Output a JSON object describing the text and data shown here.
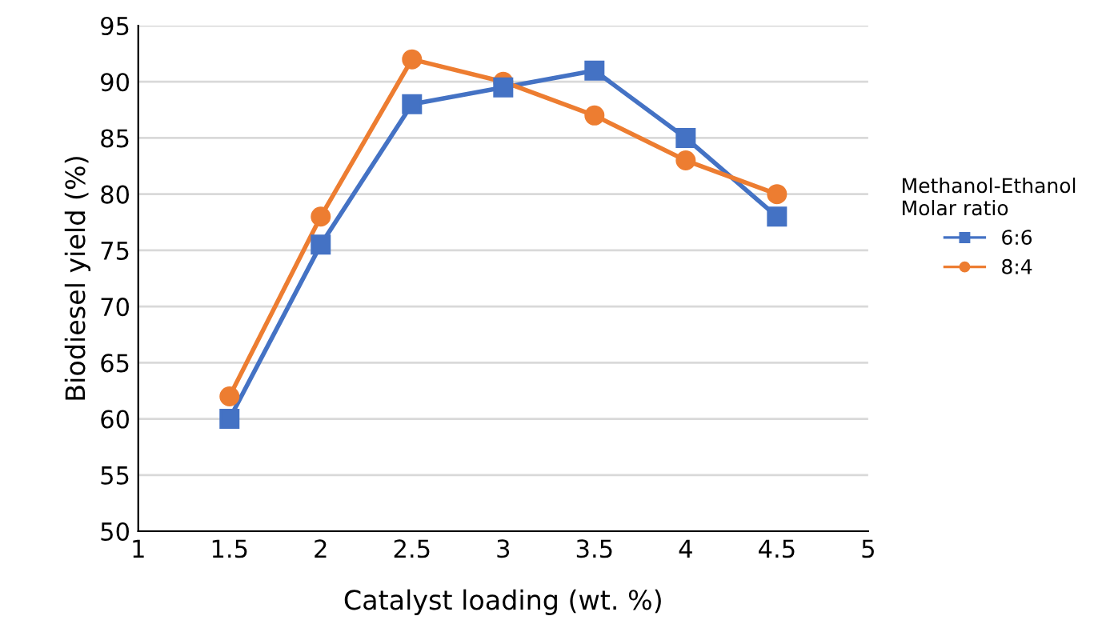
{
  "chart_data": {
    "type": "line",
    "xlabel": "Catalyst loading (wt. %)",
    "ylabel": "Biodiesel yield (%)",
    "legend_title": "Methanol-Ethanol\nMolar ratio",
    "x": [
      1.5,
      2,
      2.5,
      3,
      3.5,
      4,
      4.5
    ],
    "series": [
      {
        "name": "6:6",
        "color": "#4472c4",
        "marker": "square",
        "values": [
          60,
          75.5,
          88,
          89.5,
          91,
          85,
          78
        ]
      },
      {
        "name": "8:4",
        "color": "#ed7d31",
        "marker": "circle",
        "values": [
          62,
          78,
          92,
          90,
          87,
          83,
          80
        ]
      }
    ],
    "xlim": [
      1,
      5
    ],
    "xticks": [
      1,
      1.5,
      2,
      2.5,
      3,
      3.5,
      4,
      4.5,
      5
    ],
    "ylim": [
      50,
      95
    ],
    "yticks": [
      50,
      55,
      60,
      65,
      70,
      75,
      80,
      85,
      90,
      95
    ],
    "grid": "y",
    "legend": "right",
    "line_style": "solid"
  }
}
